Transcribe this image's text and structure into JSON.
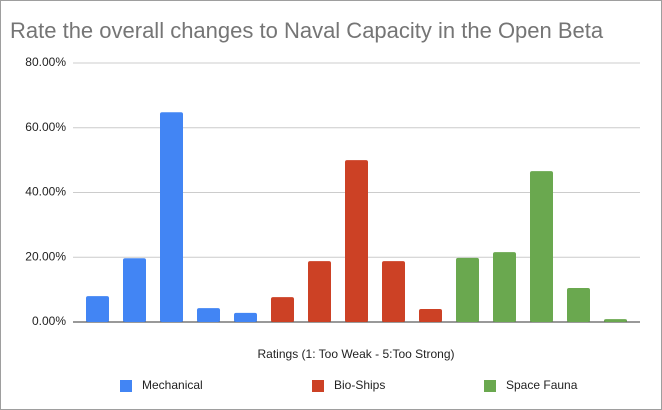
{
  "chart_data": {
    "type": "bar",
    "title": "Rate the overall changes to Naval Capacity in the Open Beta",
    "x_label": "Ratings (1: Too Weak - 5:Too Strong)",
    "categories": [
      null,
      null,
      null,
      null,
      null,
      null,
      null,
      null,
      null,
      null,
      null,
      null,
      null,
      null,
      null
    ],
    "series": [
      {
        "name": "Mechanical",
        "color": "#4285f4",
        "values": [
          8.0,
          19.7,
          64.8,
          4.3,
          2.8,
          null,
          null,
          null,
          null,
          null,
          null,
          null,
          null,
          null,
          null
        ]
      },
      {
        "name": "Bio-Ships",
        "color": "#cc4125",
        "values": [
          null,
          null,
          null,
          null,
          null,
          7.7,
          18.8,
          50.0,
          18.8,
          4.0,
          null,
          null,
          null,
          null,
          null
        ]
      },
      {
        "name": "Space Fauna",
        "color": "#6aa84f",
        "values": [
          null,
          null,
          null,
          null,
          null,
          null,
          null,
          null,
          null,
          null,
          19.8,
          21.6,
          46.6,
          10.5,
          0.9
        ]
      }
    ],
    "ylim": [
      0,
      80
    ],
    "yticks": [
      {
        "value": 0,
        "label": "0.00%"
      },
      {
        "value": 20,
        "label": "20.00%"
      },
      {
        "value": 40,
        "label": "40.00%"
      },
      {
        "value": 60,
        "label": "60.00%"
      },
      {
        "value": 80,
        "label": "80.00%"
      }
    ],
    "grid": true,
    "legend": "bottom"
  }
}
